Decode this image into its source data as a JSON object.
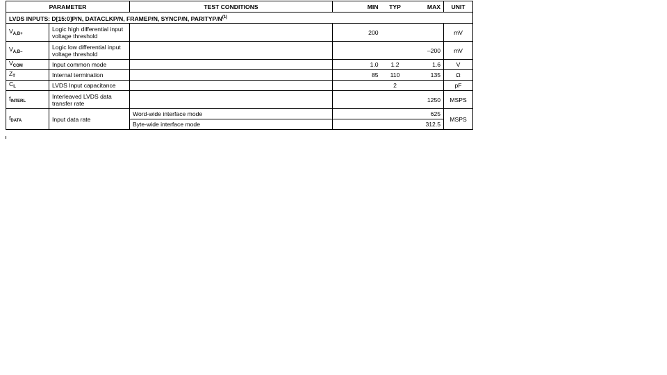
{
  "header": {
    "parameter": "PARAMETER",
    "test_conditions": "TEST CONDITIONS",
    "min": "MIN",
    "typ": "TYP",
    "max": "MAX",
    "unit": "UNIT"
  },
  "section": {
    "title": "LVDS INPUTS: D[15:0]P/N, DATACLKP/N, FRAMEP/N, SYNCP/N, PARITYP/N",
    "footnote": "(1)"
  },
  "rows": [
    {
      "sym": "V",
      "sub": "A,B+",
      "desc": "Logic high differential input voltage threshold",
      "cond": "",
      "min": "200",
      "typ": "",
      "max": "",
      "unit": "mV"
    },
    {
      "sym": "V",
      "sub": "A,B–",
      "desc": "Logic low differential input voltage threshold",
      "cond": "",
      "min": "",
      "typ": "",
      "max": "–200",
      "unit": "mV"
    },
    {
      "sym": "V",
      "sub": "COM",
      "desc": "Input common mode",
      "cond": "",
      "min": "1.0",
      "typ": "1.2",
      "max": "1.6",
      "unit": "V"
    },
    {
      "sym": "Z",
      "sub": "T",
      "desc": "Internal termination",
      "cond": "",
      "min": "85",
      "typ": "110",
      "max": "135",
      "unit": "Ω"
    },
    {
      "sym": "C",
      "sub": "L",
      "desc": "LVDS Input capacitance",
      "cond": "",
      "min": "",
      "typ": "2",
      "max": "",
      "unit": "pF"
    },
    {
      "sym": "f",
      "sub": "INTERL",
      "desc": "Interleaved LVDS data transfer rate",
      "cond": "",
      "min": "",
      "typ": "",
      "max": "1250",
      "unit": "MSPS"
    },
    {
      "sym": "f",
      "sub": "DATA",
      "desc": "Input data rate",
      "unit": "MSPS",
      "conds": [
        {
          "cond": "Word-wide interface mode",
          "min": "",
          "typ": "",
          "max": "625"
        },
        {
          "cond": "Byte-wide interface mode",
          "min": "",
          "typ": "",
          "max": "312.5"
        }
      ]
    }
  ]
}
